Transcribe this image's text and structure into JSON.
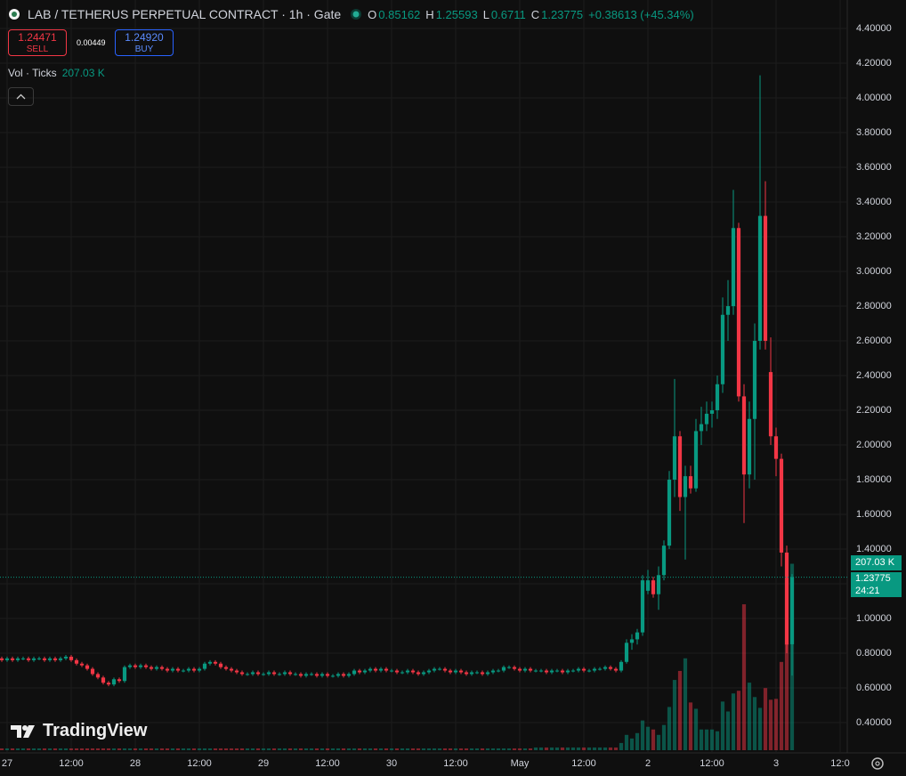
{
  "chart_data": {
    "type": "candlestick",
    "title": "LAB / TETHERUS PERPETUAL CONTRACT · 1h · Gate",
    "ohlc_labels": [
      "O",
      "H",
      "L",
      "C"
    ],
    "change_label": "+0.38613 (+45.34%)",
    "sell": {
      "price": "1.24471",
      "label": "SELL"
    },
    "spread": "0.00449",
    "buy": {
      "price": "1.24920",
      "label": "BUY"
    },
    "volume_title": "Vol · Ticks",
    "volume_last_label": "207.03 K",
    "countdown": "24:21",
    "brand": "TradingView",
    "up_color": "#089981",
    "down_color": "#f23645",
    "grid": true,
    "xlim": [
      0,
      158
    ],
    "ylim": [
      0.231,
      4.564
    ],
    "y2lim": [
      0,
      833
    ],
    "xticks": [
      {
        "value": 1,
        "label": "27"
      },
      {
        "value": 13,
        "label": "12:00"
      },
      {
        "value": 25,
        "label": "28"
      },
      {
        "value": 37,
        "label": "12:00"
      },
      {
        "value": 49,
        "label": "29"
      },
      {
        "value": 61,
        "label": "12:00"
      },
      {
        "value": 73,
        "label": "30"
      },
      {
        "value": 85,
        "label": "12:00"
      },
      {
        "value": 97,
        "label": "May"
      },
      {
        "value": 109,
        "label": "12:00"
      },
      {
        "value": 121,
        "label": "2"
      },
      {
        "value": 133,
        "label": "12:00"
      },
      {
        "value": 145,
        "label": "3"
      },
      {
        "value": 157,
        "label": "12:0"
      }
    ],
    "yticks": [
      {
        "value": 0.4,
        "label": "0.40000"
      },
      {
        "value": 0.6,
        "label": "0.60000"
      },
      {
        "value": 0.8,
        "label": "0.80000"
      },
      {
        "value": 1.0,
        "label": "1.00000"
      },
      {
        "value": 1.2,
        "label": "1.20000"
      },
      {
        "value": 1.4,
        "label": "1.40000"
      },
      {
        "value": 1.6,
        "label": "1.60000"
      },
      {
        "value": 1.8,
        "label": "1.80000"
      },
      {
        "value": 2.0,
        "label": "2.00000"
      },
      {
        "value": 2.2,
        "label": "2.20000"
      },
      {
        "value": 2.4,
        "label": "2.40000"
      },
      {
        "value": 2.6,
        "label": "2.60000"
      },
      {
        "value": 2.8,
        "label": "2.80000"
      },
      {
        "value": 3.0,
        "label": "3.00000"
      },
      {
        "value": 3.2,
        "label": "3.20000"
      },
      {
        "value": 3.4,
        "label": "3.40000"
      },
      {
        "value": 3.6,
        "label": "3.60000"
      },
      {
        "value": 3.8,
        "label": "3.80000"
      },
      {
        "value": 4.0,
        "label": "4.00000"
      },
      {
        "value": 4.2,
        "label": "4.20000"
      },
      {
        "value": 4.4,
        "label": "4.40000"
      }
    ],
    "ohlc": [
      [
        0.77,
        0.78,
        0.75,
        0.76
      ],
      [
        0.76,
        0.78,
        0.75,
        0.77
      ],
      [
        0.77,
        0.78,
        0.75,
        0.76
      ],
      [
        0.76,
        0.78,
        0.75,
        0.77
      ],
      [
        0.77,
        0.78,
        0.76,
        0.77
      ],
      [
        0.77,
        0.78,
        0.75,
        0.76
      ],
      [
        0.76,
        0.78,
        0.75,
        0.77
      ],
      [
        0.77,
        0.78,
        0.76,
        0.77
      ],
      [
        0.77,
        0.78,
        0.75,
        0.76
      ],
      [
        0.76,
        0.78,
        0.75,
        0.77
      ],
      [
        0.77,
        0.78,
        0.75,
        0.76
      ],
      [
        0.76,
        0.78,
        0.75,
        0.77
      ],
      [
        0.77,
        0.79,
        0.76,
        0.78
      ],
      [
        0.78,
        0.79,
        0.75,
        0.76
      ],
      [
        0.76,
        0.77,
        0.73,
        0.74
      ],
      [
        0.74,
        0.75,
        0.72,
        0.73
      ],
      [
        0.73,
        0.74,
        0.7,
        0.71
      ],
      [
        0.71,
        0.72,
        0.67,
        0.68
      ],
      [
        0.68,
        0.69,
        0.65,
        0.66
      ],
      [
        0.66,
        0.67,
        0.62,
        0.63
      ],
      [
        0.63,
        0.64,
        0.61,
        0.62
      ],
      [
        0.62,
        0.66,
        0.61,
        0.65
      ],
      [
        0.65,
        0.66,
        0.63,
        0.64
      ],
      [
        0.64,
        0.73,
        0.63,
        0.72
      ],
      [
        0.72,
        0.74,
        0.71,
        0.73
      ],
      [
        0.73,
        0.74,
        0.71,
        0.72
      ],
      [
        0.72,
        0.74,
        0.71,
        0.73
      ],
      [
        0.73,
        0.74,
        0.71,
        0.72
      ],
      [
        0.72,
        0.73,
        0.7,
        0.71
      ],
      [
        0.71,
        0.73,
        0.7,
        0.72
      ],
      [
        0.72,
        0.73,
        0.7,
        0.71
      ],
      [
        0.71,
        0.72,
        0.69,
        0.7
      ],
      [
        0.7,
        0.72,
        0.69,
        0.71
      ],
      [
        0.71,
        0.72,
        0.69,
        0.7
      ],
      [
        0.7,
        0.71,
        0.69,
        0.7
      ],
      [
        0.7,
        0.72,
        0.69,
        0.71
      ],
      [
        0.71,
        0.72,
        0.69,
        0.7
      ],
      [
        0.7,
        0.72,
        0.69,
        0.71
      ],
      [
        0.71,
        0.75,
        0.7,
        0.74
      ],
      [
        0.74,
        0.76,
        0.73,
        0.75
      ],
      [
        0.75,
        0.76,
        0.73,
        0.74
      ],
      [
        0.74,
        0.75,
        0.71,
        0.72
      ],
      [
        0.72,
        0.73,
        0.7,
        0.71
      ],
      [
        0.71,
        0.72,
        0.69,
        0.7
      ],
      [
        0.7,
        0.71,
        0.68,
        0.69
      ],
      [
        0.69,
        0.7,
        0.67,
        0.68
      ],
      [
        0.68,
        0.69,
        0.67,
        0.68
      ],
      [
        0.68,
        0.7,
        0.67,
        0.69
      ],
      [
        0.69,
        0.7,
        0.67,
        0.68
      ],
      [
        0.68,
        0.69,
        0.67,
        0.68
      ],
      [
        0.68,
        0.7,
        0.67,
        0.69
      ],
      [
        0.69,
        0.7,
        0.67,
        0.68
      ],
      [
        0.68,
        0.69,
        0.67,
        0.68
      ],
      [
        0.68,
        0.7,
        0.67,
        0.69
      ],
      [
        0.69,
        0.7,
        0.67,
        0.68
      ],
      [
        0.68,
        0.69,
        0.67,
        0.68
      ],
      [
        0.68,
        0.69,
        0.66,
        0.67
      ],
      [
        0.67,
        0.69,
        0.66,
        0.68
      ],
      [
        0.68,
        0.69,
        0.67,
        0.68
      ],
      [
        0.68,
        0.69,
        0.66,
        0.67
      ],
      [
        0.67,
        0.69,
        0.66,
        0.68
      ],
      [
        0.68,
        0.69,
        0.66,
        0.67
      ],
      [
        0.67,
        0.68,
        0.66,
        0.67
      ],
      [
        0.67,
        0.69,
        0.66,
        0.68
      ],
      [
        0.68,
        0.69,
        0.66,
        0.67
      ],
      [
        0.67,
        0.69,
        0.66,
        0.68
      ],
      [
        0.68,
        0.71,
        0.67,
        0.7
      ],
      [
        0.7,
        0.71,
        0.68,
        0.69
      ],
      [
        0.69,
        0.71,
        0.68,
        0.7
      ],
      [
        0.7,
        0.72,
        0.69,
        0.71
      ],
      [
        0.71,
        0.72,
        0.69,
        0.7
      ],
      [
        0.7,
        0.72,
        0.69,
        0.71
      ],
      [
        0.71,
        0.72,
        0.69,
        0.7
      ],
      [
        0.7,
        0.71,
        0.69,
        0.7
      ],
      [
        0.7,
        0.71,
        0.68,
        0.69
      ],
      [
        0.69,
        0.7,
        0.68,
        0.69
      ],
      [
        0.69,
        0.71,
        0.68,
        0.7
      ],
      [
        0.7,
        0.71,
        0.68,
        0.69
      ],
      [
        0.69,
        0.7,
        0.67,
        0.68
      ],
      [
        0.68,
        0.7,
        0.67,
        0.69
      ],
      [
        0.69,
        0.71,
        0.68,
        0.7
      ],
      [
        0.7,
        0.72,
        0.69,
        0.71
      ],
      [
        0.71,
        0.72,
        0.7,
        0.71
      ],
      [
        0.71,
        0.72,
        0.69,
        0.7
      ],
      [
        0.7,
        0.71,
        0.68,
        0.69
      ],
      [
        0.69,
        0.71,
        0.68,
        0.7
      ],
      [
        0.7,
        0.71,
        0.68,
        0.69
      ],
      [
        0.69,
        0.7,
        0.67,
        0.68
      ],
      [
        0.68,
        0.7,
        0.67,
        0.69
      ],
      [
        0.69,
        0.7,
        0.68,
        0.69
      ],
      [
        0.69,
        0.7,
        0.67,
        0.68
      ],
      [
        0.68,
        0.7,
        0.67,
        0.69
      ],
      [
        0.69,
        0.71,
        0.68,
        0.7
      ],
      [
        0.7,
        0.71,
        0.69,
        0.7
      ],
      [
        0.7,
        0.73,
        0.69,
        0.72
      ],
      [
        0.72,
        0.73,
        0.71,
        0.72
      ],
      [
        0.72,
        0.73,
        0.7,
        0.71
      ],
      [
        0.71,
        0.72,
        0.69,
        0.7
      ],
      [
        0.7,
        0.72,
        0.69,
        0.71
      ],
      [
        0.71,
        0.72,
        0.69,
        0.7
      ],
      [
        0.7,
        0.71,
        0.69,
        0.7
      ],
      [
        0.7,
        0.71,
        0.69,
        0.7
      ],
      [
        0.7,
        0.71,
        0.68,
        0.69
      ],
      [
        0.69,
        0.71,
        0.68,
        0.7
      ],
      [
        0.7,
        0.71,
        0.69,
        0.7
      ],
      [
        0.7,
        0.71,
        0.68,
        0.69
      ],
      [
        0.69,
        0.71,
        0.68,
        0.7
      ],
      [
        0.7,
        0.71,
        0.69,
        0.7
      ],
      [
        0.7,
        0.72,
        0.69,
        0.71
      ],
      [
        0.71,
        0.72,
        0.69,
        0.7
      ],
      [
        0.7,
        0.71,
        0.69,
        0.7
      ],
      [
        0.7,
        0.72,
        0.69,
        0.71
      ],
      [
        0.71,
        0.72,
        0.7,
        0.71
      ],
      [
        0.71,
        0.73,
        0.7,
        0.72
      ],
      [
        0.72,
        0.73,
        0.7,
        0.71
      ],
      [
        0.71,
        0.72,
        0.69,
        0.7
      ],
      [
        0.7,
        0.76,
        0.69,
        0.75
      ],
      [
        0.75,
        0.88,
        0.74,
        0.86
      ],
      [
        0.86,
        0.91,
        0.82,
        0.88
      ],
      [
        0.88,
        0.94,
        0.85,
        0.92
      ],
      [
        0.92,
        1.25,
        0.9,
        1.22
      ],
      [
        1.16,
        1.28,
        1.14,
        1.22
      ],
      [
        1.22,
        1.24,
        1.12,
        1.14
      ],
      [
        1.14,
        1.3,
        1.05,
        1.25
      ],
      [
        1.25,
        1.45,
        1.22,
        1.42
      ],
      [
        1.42,
        1.85,
        1.4,
        1.8
      ],
      [
        1.8,
        2.38,
        1.7,
        2.05
      ],
      [
        2.05,
        2.08,
        1.62,
        1.7
      ],
      [
        1.7,
        1.88,
        1.34,
        1.82
      ],
      [
        1.82,
        1.88,
        1.72,
        1.75
      ],
      [
        1.75,
        2.15,
        1.73,
        2.08
      ],
      [
        2.08,
        2.22,
        2.0,
        2.12
      ],
      [
        2.12,
        2.25,
        2.08,
        2.18
      ],
      [
        2.18,
        2.25,
        2.1,
        2.2
      ],
      [
        2.2,
        2.4,
        2.15,
        2.35
      ],
      [
        2.35,
        2.85,
        2.3,
        2.75
      ],
      [
        2.75,
        2.95,
        2.6,
        2.8
      ],
      [
        2.8,
        3.47,
        2.75,
        3.25
      ],
      [
        3.25,
        3.28,
        2.25,
        2.28
      ],
      [
        2.28,
        2.35,
        1.55,
        1.83
      ],
      [
        1.83,
        2.25,
        1.75,
        2.15
      ],
      [
        2.15,
        2.7,
        1.8,
        2.6
      ],
      [
        2.6,
        4.13,
        2.55,
        3.32
      ],
      [
        3.32,
        3.52,
        2.55,
        2.6
      ],
      [
        2.42,
        2.62,
        2.0,
        2.05
      ],
      [
        2.05,
        2.1,
        1.82,
        1.92
      ],
      [
        1.92,
        1.95,
        1.3,
        1.38
      ],
      [
        1.38,
        1.42,
        0.8,
        0.85
      ],
      [
        0.85162,
        1.25593,
        0.6711,
        1.23775
      ]
    ],
    "volume": [
      2,
      2,
      2,
      2,
      2,
      2,
      2,
      2,
      2,
      2,
      2,
      2,
      2,
      2,
      2,
      2,
      2,
      2,
      2,
      2,
      2,
      2,
      2,
      2,
      2,
      2,
      2,
      2,
      2,
      2,
      2,
      2,
      2,
      2,
      2,
      2,
      2,
      2,
      2,
      2,
      2,
      2,
      2,
      2,
      2,
      2,
      2,
      2,
      2,
      2,
      2,
      2,
      2,
      2,
      2,
      2,
      2,
      2,
      2,
      2,
      2,
      2,
      2,
      2,
      2,
      2,
      2,
      2,
      2,
      2,
      2,
      2,
      2,
      2,
      2,
      2,
      2,
      2,
      2,
      2,
      2,
      2,
      2,
      2,
      2,
      2,
      2,
      2,
      2,
      2,
      2,
      2,
      2,
      2,
      2,
      2,
      2,
      2,
      2,
      2,
      3,
      3,
      3,
      3,
      3,
      3,
      3,
      3,
      3,
      3,
      3,
      3,
      3,
      3,
      3,
      3,
      8,
      17,
      13,
      19,
      33,
      26,
      23,
      17,
      28,
      48,
      78,
      88,
      102,
      53,
      46,
      23,
      23,
      23,
      21,
      54,
      43,
      63,
      66,
      162,
      75,
      59,
      47,
      69,
      56,
      57,
      98,
      118,
      207.03
    ]
  }
}
